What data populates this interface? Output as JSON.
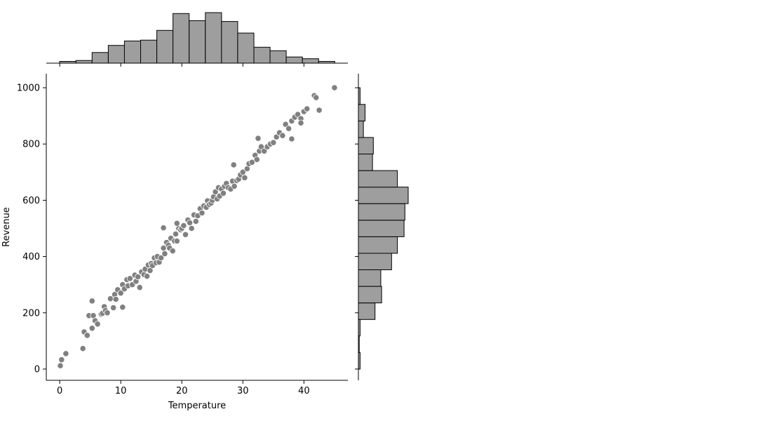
{
  "chart_data": {
    "type": "scatter",
    "xlabel": "Temperature",
    "ylabel": "Revenue",
    "xlim": [
      -2.2,
      47.2
    ],
    "ylim": [
      -40,
      1050
    ],
    "xticks": [
      0,
      10,
      20,
      30,
      40
    ],
    "yticks": [
      0,
      200,
      400,
      600,
      800,
      1000
    ],
    "grid": false,
    "colors": {
      "points": "#808080",
      "bars": "#9e9e9e",
      "edges": "#000000"
    },
    "x_histogram": {
      "bin_edges": [
        0,
        2.65,
        5.3,
        7.95,
        10.6,
        13.25,
        15.9,
        18.55,
        21.2,
        23.85,
        26.5,
        29.15,
        31.8,
        34.45,
        37.1,
        39.75,
        42.4,
        45.05
      ],
      "counts": [
        2,
        3,
        12,
        20,
        25,
        26,
        37,
        56,
        48,
        57,
        47,
        34,
        18,
        14,
        7,
        5,
        2
      ]
    },
    "y_histogram": {
      "bin_edges": [
        0,
        58.8,
        117.6,
        176.4,
        235.2,
        294,
        352.8,
        411.6,
        470.4,
        529.2,
        588,
        646.8,
        705.6,
        764.4,
        823.2,
        882,
        940.8,
        1000
      ],
      "counts": [
        2,
        1,
        2,
        20,
        28,
        27,
        40,
        47,
        55,
        56,
        60,
        47,
        17,
        18,
        6,
        8,
        2
      ]
    },
    "series": [
      {
        "x": [
          0.1,
          0.3,
          1.0,
          3.8,
          4.0,
          4.5,
          4.8,
          5.3,
          5.5,
          5.8,
          6.2,
          6.8,
          7.0,
          7.3,
          7.5,
          7.8,
          8.3,
          8.8,
          9.0,
          9.2,
          9.5,
          10.0,
          10.3,
          10.6,
          11.0,
          11.2,
          11.5,
          11.9,
          12.3,
          12.5,
          12.8,
          13.1,
          13.4,
          13.8,
          14.0,
          14.3,
          14.5,
          14.8,
          15.0,
          15.2,
          15.5,
          15.8,
          16.0,
          16.3,
          16.6,
          17.0,
          17.2,
          17.5,
          17.8,
          18.0,
          18.2,
          18.5,
          18.8,
          19.0,
          19.2,
          19.5,
          19.8,
          20.0,
          20.3,
          20.6,
          21.0,
          21.3,
          21.6,
          22.0,
          22.3,
          22.6,
          23.0,
          23.3,
          23.6,
          24.0,
          24.2,
          24.5,
          24.8,
          25.0,
          25.2,
          25.5,
          25.8,
          26.0,
          26.2,
          26.5,
          26.8,
          27.0,
          27.3,
          27.6,
          28.0,
          28.3,
          28.6,
          29.0,
          29.3,
          29.6,
          30.0,
          30.3,
          30.7,
          31.0,
          31.5,
          32.0,
          32.3,
          32.7,
          33.0,
          33.5,
          34.0,
          34.5,
          35.0,
          35.5,
          36.0,
          36.5,
          37.0,
          37.5,
          38.0,
          38.5,
          39.0,
          39.5,
          40.0,
          40.5,
          41.7,
          42.0,
          42.5,
          45.0,
          17.0,
          28.5,
          5.3,
          19.2,
          32.5,
          38.0,
          39.5,
          10.3
        ],
        "y": [
          12,
          33,
          55,
          73,
          132,
          120,
          190,
          145,
          190,
          172,
          160,
          195,
          198,
          222,
          208,
          200,
          250,
          218,
          265,
          248,
          282,
          270,
          300,
          285,
          318,
          296,
          322,
          300,
          334,
          312,
          328,
          290,
          345,
          336,
          355,
          330,
          370,
          350,
          375,
          368,
          395,
          378,
          400,
          380,
          395,
          430,
          410,
          450,
          440,
          430,
          465,
          420,
          455,
          480,
          455,
          500,
          495,
          500,
          510,
          478,
          530,
          520,
          500,
          548,
          525,
          545,
          570,
          555,
          580,
          575,
          598,
          585,
          590,
          600,
          612,
          630,
          605,
          645,
          615,
          640,
          625,
          650,
          660,
          645,
          640,
          668,
          650,
          670,
          675,
          690,
          700,
          680,
          712,
          730,
          735,
          760,
          745,
          775,
          790,
          775,
          790,
          800,
          805,
          825,
          840,
          830,
          870,
          855,
          882,
          895,
          905,
          890,
          915,
          925,
          972,
          965,
          920,
          1000,
          502,
          726,
          242,
          518,
          820,
          818,
          875,
          220
        ]
      }
    ]
  }
}
